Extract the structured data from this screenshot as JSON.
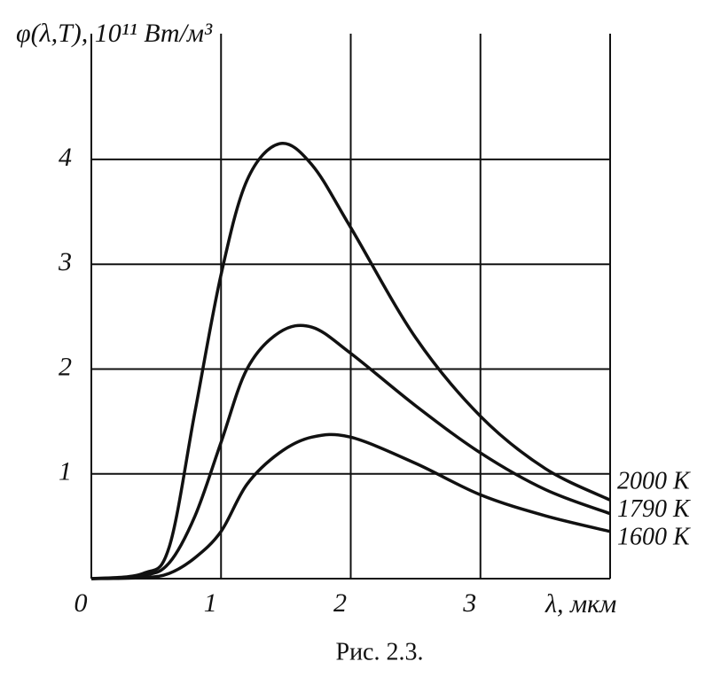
{
  "chart_data": {
    "type": "line",
    "y_label": "φ(λ,T), 10¹¹ Вт/м³",
    "x_label": "λ, мкм",
    "caption": "Рис. 2.3.",
    "x": [
      0,
      0.4,
      0.6,
      0.8,
      1.0,
      1.2,
      1.45,
      1.7,
      2.0,
      2.5,
      3.0,
      3.5,
      4.0
    ],
    "series": [
      {
        "name": "2000 K",
        "color": "#111111",
        "values": [
          0,
          0.05,
          0.3,
          1.6,
          2.9,
          3.8,
          4.15,
          3.95,
          3.35,
          2.3,
          1.55,
          1.05,
          0.75
        ]
      },
      {
        "name": "1790 K",
        "color": "#111111",
        "values": [
          0,
          0.03,
          0.15,
          0.6,
          1.3,
          2.0,
          2.35,
          2.4,
          2.15,
          1.65,
          1.2,
          0.85,
          0.62
        ]
      },
      {
        "name": "1600 K",
        "color": "#111111",
        "values": [
          0,
          0.01,
          0.05,
          0.2,
          0.45,
          0.9,
          1.2,
          1.35,
          1.35,
          1.1,
          0.8,
          0.6,
          0.45
        ]
      }
    ],
    "xlim": [
      0,
      4
    ],
    "ylim": [
      0,
      5.2
    ],
    "xticks": [
      0,
      1,
      2,
      3
    ],
    "yticks": [
      1,
      2,
      3,
      4
    ],
    "grid": true
  }
}
